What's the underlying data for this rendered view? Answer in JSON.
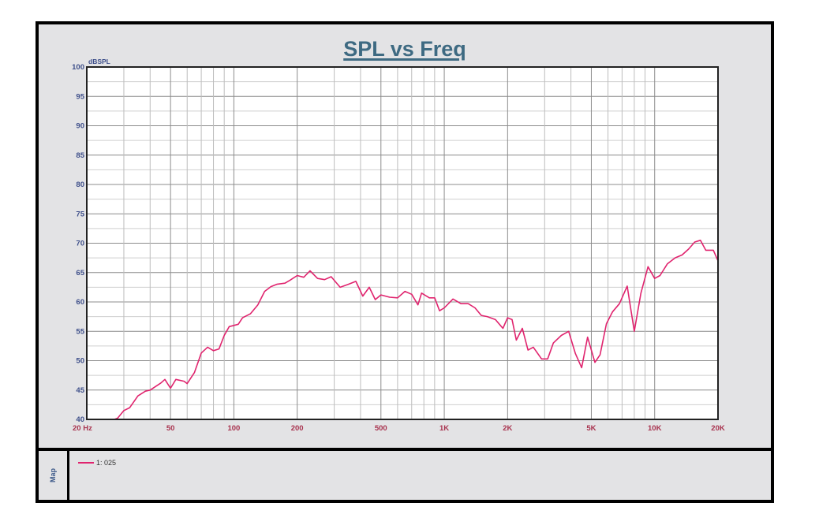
{
  "chart_data": {
    "type": "line",
    "title": "SPL vs Freq",
    "xlabel": "Hz",
    "ylabel": "dBSPL",
    "xscale": "log",
    "xlim": [
      20,
      20000
    ],
    "ylim": [
      40,
      100
    ],
    "grid": true,
    "legend_position": "bottom",
    "x_tick_labels": [
      "20  Hz",
      "50",
      "100",
      "200",
      "500",
      "1K",
      "2K",
      "5K",
      "10K",
      "20K"
    ],
    "x_tick_values": [
      20,
      50,
      100,
      200,
      500,
      1000,
      2000,
      5000,
      10000,
      20000
    ],
    "y_tick_values": [
      40,
      45,
      50,
      55,
      60,
      65,
      70,
      75,
      80,
      85,
      90,
      95,
      100
    ],
    "series": [
      {
        "name": "1: 025",
        "color": "#e0246e",
        "x": [
          20,
          27,
          28,
          30,
          32,
          35,
          38,
          40,
          45,
          47,
          50,
          53,
          58,
          60,
          65,
          70,
          75,
          80,
          85,
          90,
          95,
          100,
          105,
          110,
          120,
          130,
          140,
          150,
          160,
          175,
          185,
          200,
          215,
          230,
          250,
          270,
          290,
          320,
          350,
          380,
          410,
          440,
          470,
          500,
          550,
          600,
          650,
          700,
          750,
          780,
          850,
          900,
          950,
          1000,
          1100,
          1200,
          1300,
          1400,
          1500,
          1600,
          1750,
          1900,
          2000,
          2100,
          2200,
          2350,
          2500,
          2650,
          2900,
          3100,
          3300,
          3600,
          3900,
          4200,
          4500,
          4800,
          5200,
          5500,
          5900,
          6300,
          6800,
          7400,
          8000,
          8600,
          9300,
          10000,
          10600,
          11500,
          12500,
          13500,
          14500,
          15500,
          16500,
          17500,
          19000,
          20000
        ],
        "y": [
          40,
          40,
          40.2,
          41.5,
          42,
          44,
          44.8,
          45,
          46.2,
          46.8,
          45.3,
          46.8,
          46.5,
          46.1,
          48,
          51.3,
          52.3,
          51.7,
          52,
          54.3,
          55.8,
          56,
          56.2,
          57.3,
          58,
          59.5,
          61.8,
          62.6,
          63,
          63.2,
          63.7,
          64.5,
          64.2,
          65.3,
          64,
          63.8,
          64.3,
          62.5,
          63,
          63.5,
          61,
          62.5,
          60.4,
          61.2,
          60.8,
          60.7,
          61.8,
          61.3,
          59.5,
          61.5,
          60.7,
          60.7,
          58.5,
          59,
          60.5,
          59.7,
          59.7,
          59,
          57.7,
          57.5,
          57,
          55.5,
          57.3,
          57,
          53.5,
          55.5,
          51.8,
          52.3,
          50.3,
          50.3,
          53,
          54.3,
          55,
          51.2,
          48.8,
          54,
          49.7,
          51,
          56.3,
          58.3,
          59.7,
          62.7,
          55,
          61.5,
          66,
          64,
          64.5,
          66.5,
          67.5,
          68,
          69,
          70.2,
          70.5,
          68.8,
          68.8,
          67
        ]
      }
    ]
  },
  "legend": {
    "side_label": "Map",
    "entries": [
      {
        "label": "1: 025",
        "color": "#e0246e"
      }
    ]
  },
  "colors": {
    "title": "#3e6a82",
    "y_ticks": "#3e4f8a",
    "x_ticks": "#a8324e",
    "trace": "#e0246e",
    "panel_bg": "#e3e3e5"
  }
}
